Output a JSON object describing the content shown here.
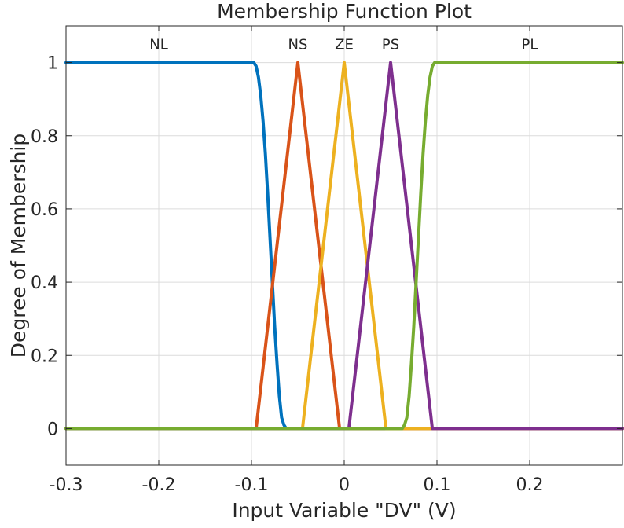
{
  "chart_data": {
    "type": "line",
    "title": "Membership Function Plot",
    "xlabel": "Input Variable \"DV\" (V)",
    "ylabel": "Degree of Membership",
    "xlim": [
      -0.3,
      0.3
    ],
    "ylim": [
      -0.1,
      1.1
    ],
    "xticks": [
      -0.3,
      -0.2,
      -0.1,
      0,
      0.1,
      0.2
    ],
    "xtick_labels": [
      "-0.3",
      "-0.2",
      "-0.1",
      "0",
      "0.1",
      "0.2"
    ],
    "yticks": [
      0,
      0.2,
      0.4,
      0.6,
      0.8,
      1
    ],
    "ytick_labels": [
      "0",
      "0.2",
      "0.4",
      "0.6",
      "0.8",
      "1"
    ],
    "grid": true,
    "series": [
      {
        "name": "NL",
        "color": "#0072bd",
        "x": [
          -0.3,
          -0.0975,
          -0.095,
          -0.0925,
          -0.09,
          -0.0875,
          -0.085,
          -0.0825,
          -0.08,
          -0.0775,
          -0.075,
          -0.0725,
          -0.07,
          -0.0675,
          -0.065,
          -0.0625,
          0.3
        ],
        "y": [
          1,
          1,
          0.99,
          0.96,
          0.91,
          0.84,
          0.75,
          0.64,
          0.52,
          0.4,
          0.28,
          0.18,
          0.09,
          0.03,
          0.01,
          0,
          0
        ]
      },
      {
        "name": "NS",
        "color": "#d95319",
        "x": [
          -0.3,
          -0.095,
          -0.05,
          -0.005,
          0.3
        ],
        "y": [
          0,
          0,
          1,
          0,
          0
        ]
      },
      {
        "name": "ZE",
        "color": "#edb120",
        "x": [
          -0.3,
          -0.045,
          0,
          0.045,
          0.3
        ],
        "y": [
          0,
          0,
          1,
          0,
          0
        ]
      },
      {
        "name": "PS",
        "color": "#7e2f8e",
        "x": [
          -0.3,
          0.005,
          0.05,
          0.095,
          0.3
        ],
        "y": [
          0,
          0,
          1,
          0,
          0
        ]
      },
      {
        "name": "PL",
        "color": "#77ac30",
        "x": [
          -0.3,
          0.0625,
          0.065,
          0.0675,
          0.07,
          0.0725,
          0.075,
          0.0775,
          0.08,
          0.0825,
          0.085,
          0.0875,
          0.09,
          0.0925,
          0.095,
          0.0975,
          0.3
        ],
        "y": [
          0,
          0,
          0.01,
          0.03,
          0.09,
          0.18,
          0.28,
          0.4,
          0.52,
          0.64,
          0.75,
          0.84,
          0.91,
          0.96,
          0.99,
          1,
          1
        ]
      }
    ],
    "annotations": [
      {
        "text": "NL",
        "x": -0.2,
        "y": 1.05
      },
      {
        "text": "NS",
        "x": -0.05,
        "y": 1.05
      },
      {
        "text": "ZE",
        "x": 0,
        "y": 1.05
      },
      {
        "text": "PS",
        "x": 0.05,
        "y": 1.05
      },
      {
        "text": "PL",
        "x": 0.2,
        "y": 1.05
      }
    ]
  }
}
